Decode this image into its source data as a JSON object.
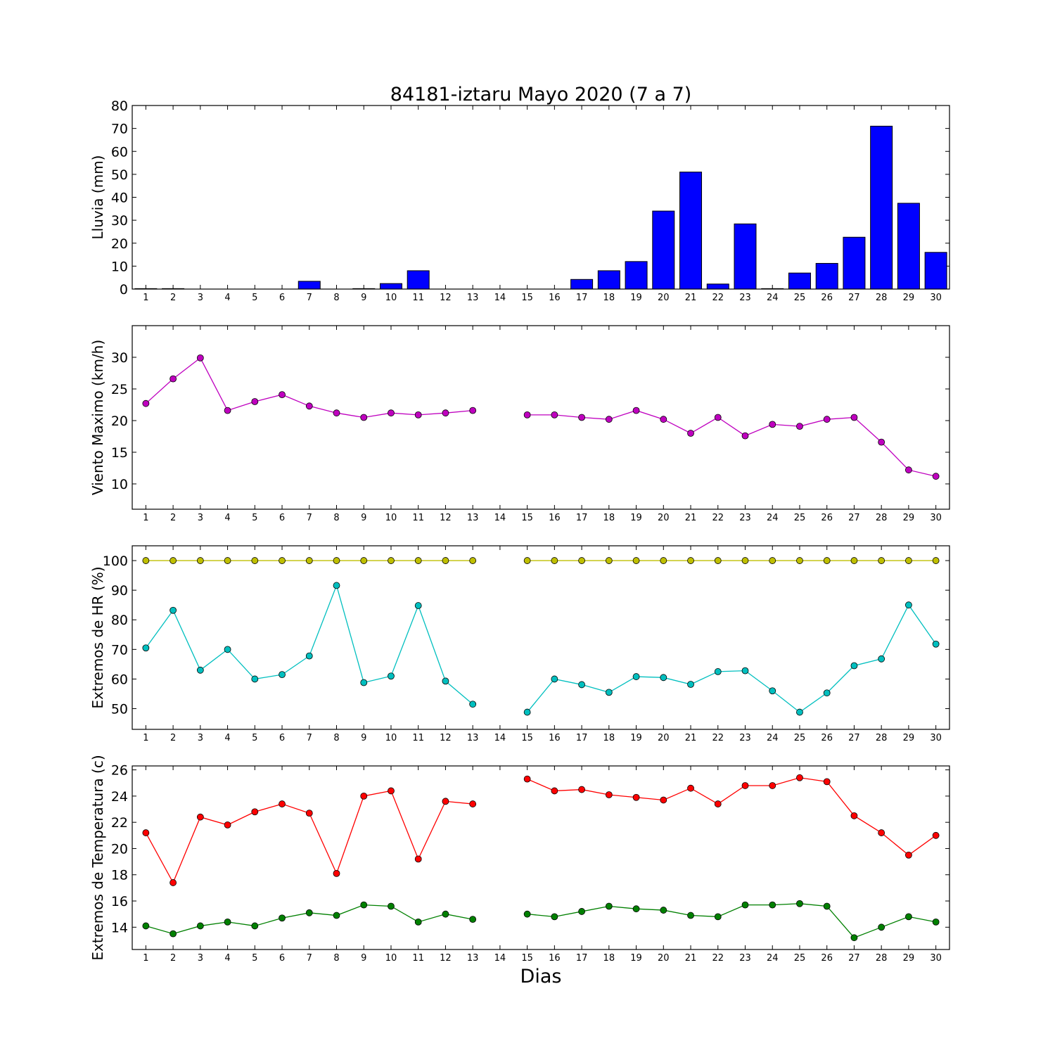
{
  "title": "84181-iztaru Mayo 2020  (7 a 7)",
  "xlabel": "Dias",
  "colors": {
    "rain": "#0000ff",
    "wind": "#bf00bf",
    "hr_max": "#bfbf00",
    "hr_min": "#00bfbf",
    "temp_max": "#ff0000",
    "temp_min": "#008000"
  },
  "chart_data": [
    {
      "type": "bar",
      "ylabel": "Lluvia (mm)",
      "xlabel": "",
      "categories": [
        "1",
        "2",
        "3",
        "4",
        "5",
        "6",
        "7",
        "8",
        "9",
        "10",
        "11",
        "12",
        "13",
        "14",
        "15",
        "16",
        "17",
        "18",
        "19",
        "20",
        "21",
        "22",
        "23",
        "24",
        "25",
        "26",
        "27",
        "28",
        "29",
        "30"
      ],
      "values": [
        0.2,
        0.2,
        0,
        0,
        0,
        0,
        3.4,
        0,
        0.2,
        2.4,
        8,
        0,
        0,
        0,
        0,
        0,
        4.2,
        8,
        12,
        34,
        51,
        2.2,
        28.4,
        0.2,
        7,
        11.2,
        22.6,
        71,
        37.4,
        16
      ],
      "ylim": [
        0,
        80
      ],
      "yticks": [
        0,
        10,
        20,
        30,
        40,
        50,
        60,
        70,
        80
      ]
    },
    {
      "type": "line",
      "ylabel": "Viento Maximo (km/h)",
      "xlabel": "",
      "x": [
        1,
        2,
        3,
        4,
        5,
        6,
        7,
        8,
        9,
        10,
        11,
        12,
        13,
        14,
        15,
        16,
        17,
        18,
        19,
        20,
        21,
        22,
        23,
        24,
        25,
        26,
        27,
        28,
        29,
        30
      ],
      "series": [
        {
          "values": [
            22.7,
            26.6,
            29.9,
            21.6,
            23.0,
            24.1,
            22.3,
            21.2,
            20.5,
            21.2,
            20.9,
            21.2,
            21.6,
            null,
            20.9,
            20.9,
            20.5,
            20.2,
            21.6,
            20.2,
            18.0,
            20.5,
            17.6,
            19.4,
            19.1,
            20.2,
            20.5,
            16.6,
            12.2,
            11.2
          ]
        }
      ],
      "ylim": [
        6,
        35
      ],
      "yticks": [
        10,
        15,
        20,
        25,
        30
      ]
    },
    {
      "type": "line",
      "ylabel": "Extremos de HR (%)",
      "xlabel": "",
      "x": [
        1,
        2,
        3,
        4,
        5,
        6,
        7,
        8,
        9,
        10,
        11,
        12,
        13,
        14,
        15,
        16,
        17,
        18,
        19,
        20,
        21,
        22,
        23,
        24,
        25,
        26,
        27,
        28,
        29,
        30
      ],
      "series": [
        {
          "values": [
            100,
            100,
            100,
            100,
            100,
            100,
            100,
            100,
            100,
            100,
            100,
            100,
            100,
            null,
            100,
            100,
            100,
            100,
            100,
            100,
            100,
            100,
            100,
            100,
            100,
            100,
            100,
            100,
            100,
            100
          ]
        },
        {
          "values": [
            70.5,
            83.2,
            63.0,
            70.0,
            60.0,
            61.5,
            67.8,
            91.6,
            58.8,
            61.0,
            84.8,
            59.3,
            51.5,
            null,
            48.8,
            60.0,
            58.1,
            55.5,
            60.8,
            60.5,
            58.2,
            62.5,
            62.8,
            56.0,
            48.8,
            55.3,
            64.5,
            66.8,
            85.0,
            71.8
          ]
        }
      ],
      "ylim": [
        43,
        105
      ],
      "yticks": [
        50,
        60,
        70,
        80,
        90,
        100
      ]
    },
    {
      "type": "line",
      "ylabel": "Extremos de Temperatura (c)",
      "xlabel": "Dias",
      "x": [
        1,
        2,
        3,
        4,
        5,
        6,
        7,
        8,
        9,
        10,
        11,
        12,
        13,
        14,
        15,
        16,
        17,
        18,
        19,
        20,
        21,
        22,
        23,
        24,
        25,
        26,
        27,
        28,
        29,
        30
      ],
      "series": [
        {
          "values": [
            21.2,
            17.4,
            22.4,
            21.8,
            22.8,
            23.4,
            22.7,
            18.1,
            24.0,
            24.4,
            19.2,
            23.6,
            23.4,
            null,
            25.3,
            24.4,
            24.5,
            24.1,
            23.9,
            23.7,
            24.6,
            23.4,
            24.8,
            24.8,
            25.4,
            25.1,
            22.5,
            21.2,
            19.5,
            21.0
          ]
        },
        {
          "values": [
            14.1,
            13.5,
            14.1,
            14.4,
            14.1,
            14.7,
            15.1,
            14.9,
            15.7,
            15.6,
            14.4,
            15.0,
            14.6,
            null,
            15.0,
            14.8,
            15.2,
            15.6,
            15.4,
            15.3,
            14.9,
            14.8,
            15.7,
            15.7,
            15.8,
            15.6,
            13.2,
            14.0,
            14.8,
            14.4
          ]
        }
      ],
      "ylim": [
        12.3,
        26.3
      ],
      "yticks": [
        14,
        16,
        18,
        20,
        22,
        24,
        26
      ]
    }
  ]
}
